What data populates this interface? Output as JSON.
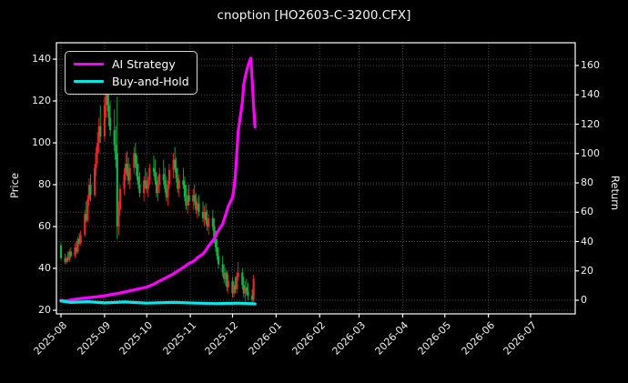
{
  "chart_data": {
    "type": "candlestick+line",
    "title": "cnoption [HO2603-C-3200.CFX]",
    "left_axis": {
      "label": "Price",
      "ticks": [
        20,
        40,
        60,
        80,
        100,
        120,
        140
      ],
      "lim": [
        18.3,
        148.0
      ]
    },
    "right_axis": {
      "label": "Return",
      "ticks": [
        0,
        20,
        40,
        60,
        80,
        100,
        120,
        140,
        160
      ],
      "lim": [
        -9.3,
        175.5
      ]
    },
    "x_axis": {
      "tick_labels": [
        "2025-08",
        "2025-09",
        "2025-10",
        "2025-11",
        "2025-12",
        "2026-01",
        "2026-02",
        "2026-03",
        "2026-04",
        "2026-05",
        "2026-06",
        "2026-07"
      ],
      "tick_dates": [
        "2025-08-01",
        "2025-09-01",
        "2025-10-01",
        "2025-11-01",
        "2025-12-01",
        "2026-01-01",
        "2026-02-01",
        "2026-03-01",
        "2026-04-01",
        "2026-05-01",
        "2026-06-01",
        "2026-07-01"
      ],
      "lim": [
        "2025-07-29",
        "2026-08-01"
      ],
      "grid": true
    },
    "legend": [
      {
        "label": "AI Strategy",
        "color": "#ff00ff"
      },
      {
        "label": "Buy-and-Hold",
        "color": "#00e8e8"
      }
    ],
    "colors": {
      "up": "#ef232a",
      "down": "#14b143",
      "background": "#000000",
      "grid": "#474747",
      "spine": "#ffffff",
      "text": "#f0f0f0"
    },
    "candles": [
      [
        "2025-08-01",
        51,
        52,
        44,
        45
      ],
      [
        "2025-08-04",
        45,
        47,
        42,
        43
      ],
      [
        "2025-08-05",
        43,
        46,
        42,
        45
      ],
      [
        "2025-08-06",
        45,
        48,
        43,
        44
      ],
      [
        "2025-08-07",
        44,
        49,
        43,
        48
      ],
      [
        "2025-08-08",
        48,
        50,
        45,
        46
      ],
      [
        "2025-08-11",
        46,
        52,
        45,
        50
      ],
      [
        "2025-08-12",
        50,
        53,
        47,
        48
      ],
      [
        "2025-08-13",
        48,
        55,
        47,
        54
      ],
      [
        "2025-08-14",
        54,
        57,
        51,
        52
      ],
      [
        "2025-08-15",
        52,
        58,
        51,
        56
      ],
      [
        "2025-08-18",
        56,
        68,
        55,
        66
      ],
      [
        "2025-08-19",
        66,
        72,
        62,
        63
      ],
      [
        "2025-08-20",
        63,
        75,
        62,
        73
      ],
      [
        "2025-08-21",
        73,
        83,
        70,
        80
      ],
      [
        "2025-08-22",
        80,
        85,
        72,
        75
      ],
      [
        "2025-08-25",
        75,
        90,
        74,
        88
      ],
      [
        "2025-08-26",
        88,
        98,
        84,
        95
      ],
      [
        "2025-08-27",
        95,
        105,
        90,
        100
      ],
      [
        "2025-08-28",
        100,
        112,
        95,
        108
      ],
      [
        "2025-08-29",
        108,
        118,
        100,
        103
      ],
      [
        "2025-09-01",
        103,
        122,
        101,
        118
      ],
      [
        "2025-09-02",
        118,
        135,
        112,
        128
      ],
      [
        "2025-09-03",
        128,
        132,
        115,
        118
      ],
      [
        "2025-09-04",
        118,
        125,
        108,
        112
      ],
      [
        "2025-09-05",
        112,
        120,
        103,
        106
      ],
      [
        "2025-09-08",
        106,
        116,
        96,
        99
      ],
      [
        "2025-09-09",
        99,
        108,
        88,
        92
      ],
      [
        "2025-09-10",
        95,
        122,
        54,
        60
      ],
      [
        "2025-09-11",
        60,
        72,
        56,
        68
      ],
      [
        "2025-09-12",
        68,
        80,
        65,
        78
      ],
      [
        "2025-09-15",
        78,
        88,
        75,
        85
      ],
      [
        "2025-09-16",
        85,
        95,
        82,
        90
      ],
      [
        "2025-09-17",
        90,
        96,
        84,
        86
      ],
      [
        "2025-09-18",
        86,
        93,
        80,
        82
      ],
      [
        "2025-09-19",
        82,
        90,
        78,
        88
      ],
      [
        "2025-09-22",
        88,
        98,
        85,
        95
      ],
      [
        "2025-09-23",
        95,
        100,
        88,
        90
      ],
      [
        "2025-09-24",
        90,
        94,
        82,
        84
      ],
      [
        "2025-09-25",
        84,
        90,
        78,
        80
      ],
      [
        "2025-09-26",
        80,
        86,
        74,
        76
      ],
      [
        "2025-09-29",
        76,
        84,
        72,
        82
      ],
      [
        "2025-09-30",
        82,
        88,
        78,
        80
      ],
      [
        "2025-10-01",
        80,
        86,
        76,
        78
      ],
      [
        "2025-10-02",
        78,
        84,
        74,
        82
      ],
      [
        "2025-10-03",
        82,
        90,
        80,
        88
      ],
      [
        "2025-10-06",
        88,
        94,
        84,
        86
      ],
      [
        "2025-10-07",
        86,
        92,
        80,
        82
      ],
      [
        "2025-10-08",
        82,
        86,
        74,
        76
      ],
      [
        "2025-10-09",
        76,
        84,
        72,
        80
      ],
      [
        "2025-10-10",
        80,
        88,
        76,
        85
      ],
      [
        "2025-10-13",
        85,
        92,
        80,
        82
      ],
      [
        "2025-10-14",
        82,
        88,
        76,
        78
      ],
      [
        "2025-10-15",
        78,
        84,
        72,
        74
      ],
      [
        "2025-10-16",
        74,
        82,
        70,
        80
      ],
      [
        "2025-10-17",
        80,
        90,
        78,
        87
      ],
      [
        "2025-10-20",
        87,
        95,
        83,
        92
      ],
      [
        "2025-10-21",
        92,
        98,
        86,
        88
      ],
      [
        "2025-10-22",
        88,
        93,
        81,
        83
      ],
      [
        "2025-10-23",
        83,
        88,
        76,
        78
      ],
      [
        "2025-10-24",
        78,
        85,
        74,
        82
      ],
      [
        "2025-10-27",
        82,
        88,
        78,
        80
      ],
      [
        "2025-10-28",
        80,
        84,
        72,
        74
      ],
      [
        "2025-10-29",
        74,
        80,
        68,
        70
      ],
      [
        "2025-10-30",
        70,
        78,
        66,
        75
      ],
      [
        "2025-10-31",
        75,
        80,
        70,
        72
      ],
      [
        "2025-11-03",
        72,
        78,
        68,
        75
      ],
      [
        "2025-11-04",
        75,
        80,
        70,
        72
      ],
      [
        "2025-11-05",
        72,
        76,
        66,
        68
      ],
      [
        "2025-11-06",
        68,
        74,
        64,
        71
      ],
      [
        "2025-11-07",
        71,
        75,
        65,
        67
      ],
      [
        "2025-11-10",
        67,
        72,
        62,
        64
      ],
      [
        "2025-11-11",
        64,
        70,
        60,
        67
      ],
      [
        "2025-11-12",
        67,
        71,
        61,
        63
      ],
      [
        "2025-11-13",
        63,
        68,
        58,
        60
      ],
      [
        "2025-11-14",
        60,
        66,
        56,
        64
      ],
      [
        "2025-11-17",
        64,
        68,
        58,
        60
      ],
      [
        "2025-11-18",
        60,
        64,
        52,
        54
      ],
      [
        "2025-11-19",
        54,
        58,
        48,
        50
      ],
      [
        "2025-11-20",
        50,
        54,
        44,
        46
      ],
      [
        "2025-11-21",
        46,
        50,
        40,
        42
      ],
      [
        "2025-11-24",
        42,
        46,
        36,
        38
      ],
      [
        "2025-11-25",
        38,
        42,
        33,
        35
      ],
      [
        "2025-11-26",
        35,
        40,
        32,
        38
      ],
      [
        "2025-11-27",
        38,
        39,
        29,
        31
      ],
      [
        "2025-11-28",
        31,
        37,
        28,
        34
      ],
      [
        "2025-12-01",
        34,
        36,
        26,
        28
      ],
      [
        "2025-12-02",
        28,
        34,
        26,
        32
      ],
      [
        "2025-12-03",
        32,
        36,
        28,
        30
      ],
      [
        "2025-12-04",
        30,
        38,
        28,
        36
      ],
      [
        "2025-12-05",
        36,
        43,
        34,
        38
      ],
      [
        "2025-12-08",
        38,
        40,
        30,
        32
      ],
      [
        "2025-12-09",
        32,
        36,
        26,
        28
      ],
      [
        "2025-12-10",
        28,
        34,
        24,
        31
      ],
      [
        "2025-12-11",
        31,
        35,
        27,
        29
      ],
      [
        "2025-12-12",
        29,
        33,
        25,
        27
      ],
      [
        "2025-12-15",
        27,
        30,
        23,
        25
      ],
      [
        "2025-12-16",
        25,
        37,
        24,
        35
      ]
    ],
    "series": [
      {
        "name": "AI Strategy",
        "color": "#ff00ff",
        "width": 3.2,
        "axis": "right",
        "points": [
          [
            "2025-08-01",
            0
          ],
          [
            "2025-08-05",
            -0.5
          ],
          [
            "2025-08-08",
            0.2
          ],
          [
            "2025-08-12",
            0.8
          ],
          [
            "2025-08-18",
            1.5
          ],
          [
            "2025-08-25",
            2.2
          ],
          [
            "2025-09-01",
            3
          ],
          [
            "2025-09-05",
            3.8
          ],
          [
            "2025-09-10",
            4.5
          ],
          [
            "2025-09-15",
            5.5
          ],
          [
            "2025-09-22",
            7
          ],
          [
            "2025-10-01",
            9
          ],
          [
            "2025-10-06",
            11
          ],
          [
            "2025-10-10",
            13
          ],
          [
            "2025-10-15",
            15.5
          ],
          [
            "2025-10-20",
            18
          ],
          [
            "2025-10-24",
            20.5
          ],
          [
            "2025-10-28",
            23
          ],
          [
            "2025-10-31",
            25
          ],
          [
            "2025-11-04",
            27
          ],
          [
            "2025-11-06",
            29
          ],
          [
            "2025-11-10",
            31.5
          ],
          [
            "2025-11-12",
            34
          ],
          [
            "2025-11-14",
            37
          ],
          [
            "2025-11-17",
            40.5
          ],
          [
            "2025-11-19",
            43.5
          ],
          [
            "2025-11-20",
            46
          ],
          [
            "2025-11-24",
            52
          ],
          [
            "2025-11-25",
            55
          ],
          [
            "2025-11-26",
            58
          ],
          [
            "2025-11-27",
            61
          ],
          [
            "2025-11-28",
            64
          ],
          [
            "2025-12-01",
            70
          ],
          [
            "2025-12-02",
            76
          ],
          [
            "2025-12-03",
            85
          ],
          [
            "2025-12-04",
            99
          ],
          [
            "2025-12-05",
            115
          ],
          [
            "2025-12-08",
            135
          ],
          [
            "2025-12-09",
            147
          ],
          [
            "2025-12-10",
            152
          ],
          [
            "2025-12-11",
            156
          ],
          [
            "2025-12-12",
            160
          ],
          [
            "2025-12-14",
            165
          ],
          [
            "2025-12-15",
            150
          ],
          [
            "2025-12-16",
            132
          ],
          [
            "2025-12-17",
            118
          ]
        ]
      },
      {
        "name": "Buy-and-Hold",
        "color": "#00e8e8",
        "width": 3.2,
        "axis": "right",
        "points": [
          [
            "2025-08-01",
            -0.5
          ],
          [
            "2025-08-08",
            -1.5
          ],
          [
            "2025-08-20",
            -1
          ],
          [
            "2025-09-01",
            -1.8
          ],
          [
            "2025-09-15",
            -1.2
          ],
          [
            "2025-10-01",
            -2
          ],
          [
            "2025-10-20",
            -1.5
          ],
          [
            "2025-11-05",
            -2
          ],
          [
            "2025-11-20",
            -2.3
          ],
          [
            "2025-12-05",
            -2
          ],
          [
            "2025-12-17",
            -2.5
          ]
        ]
      }
    ]
  }
}
